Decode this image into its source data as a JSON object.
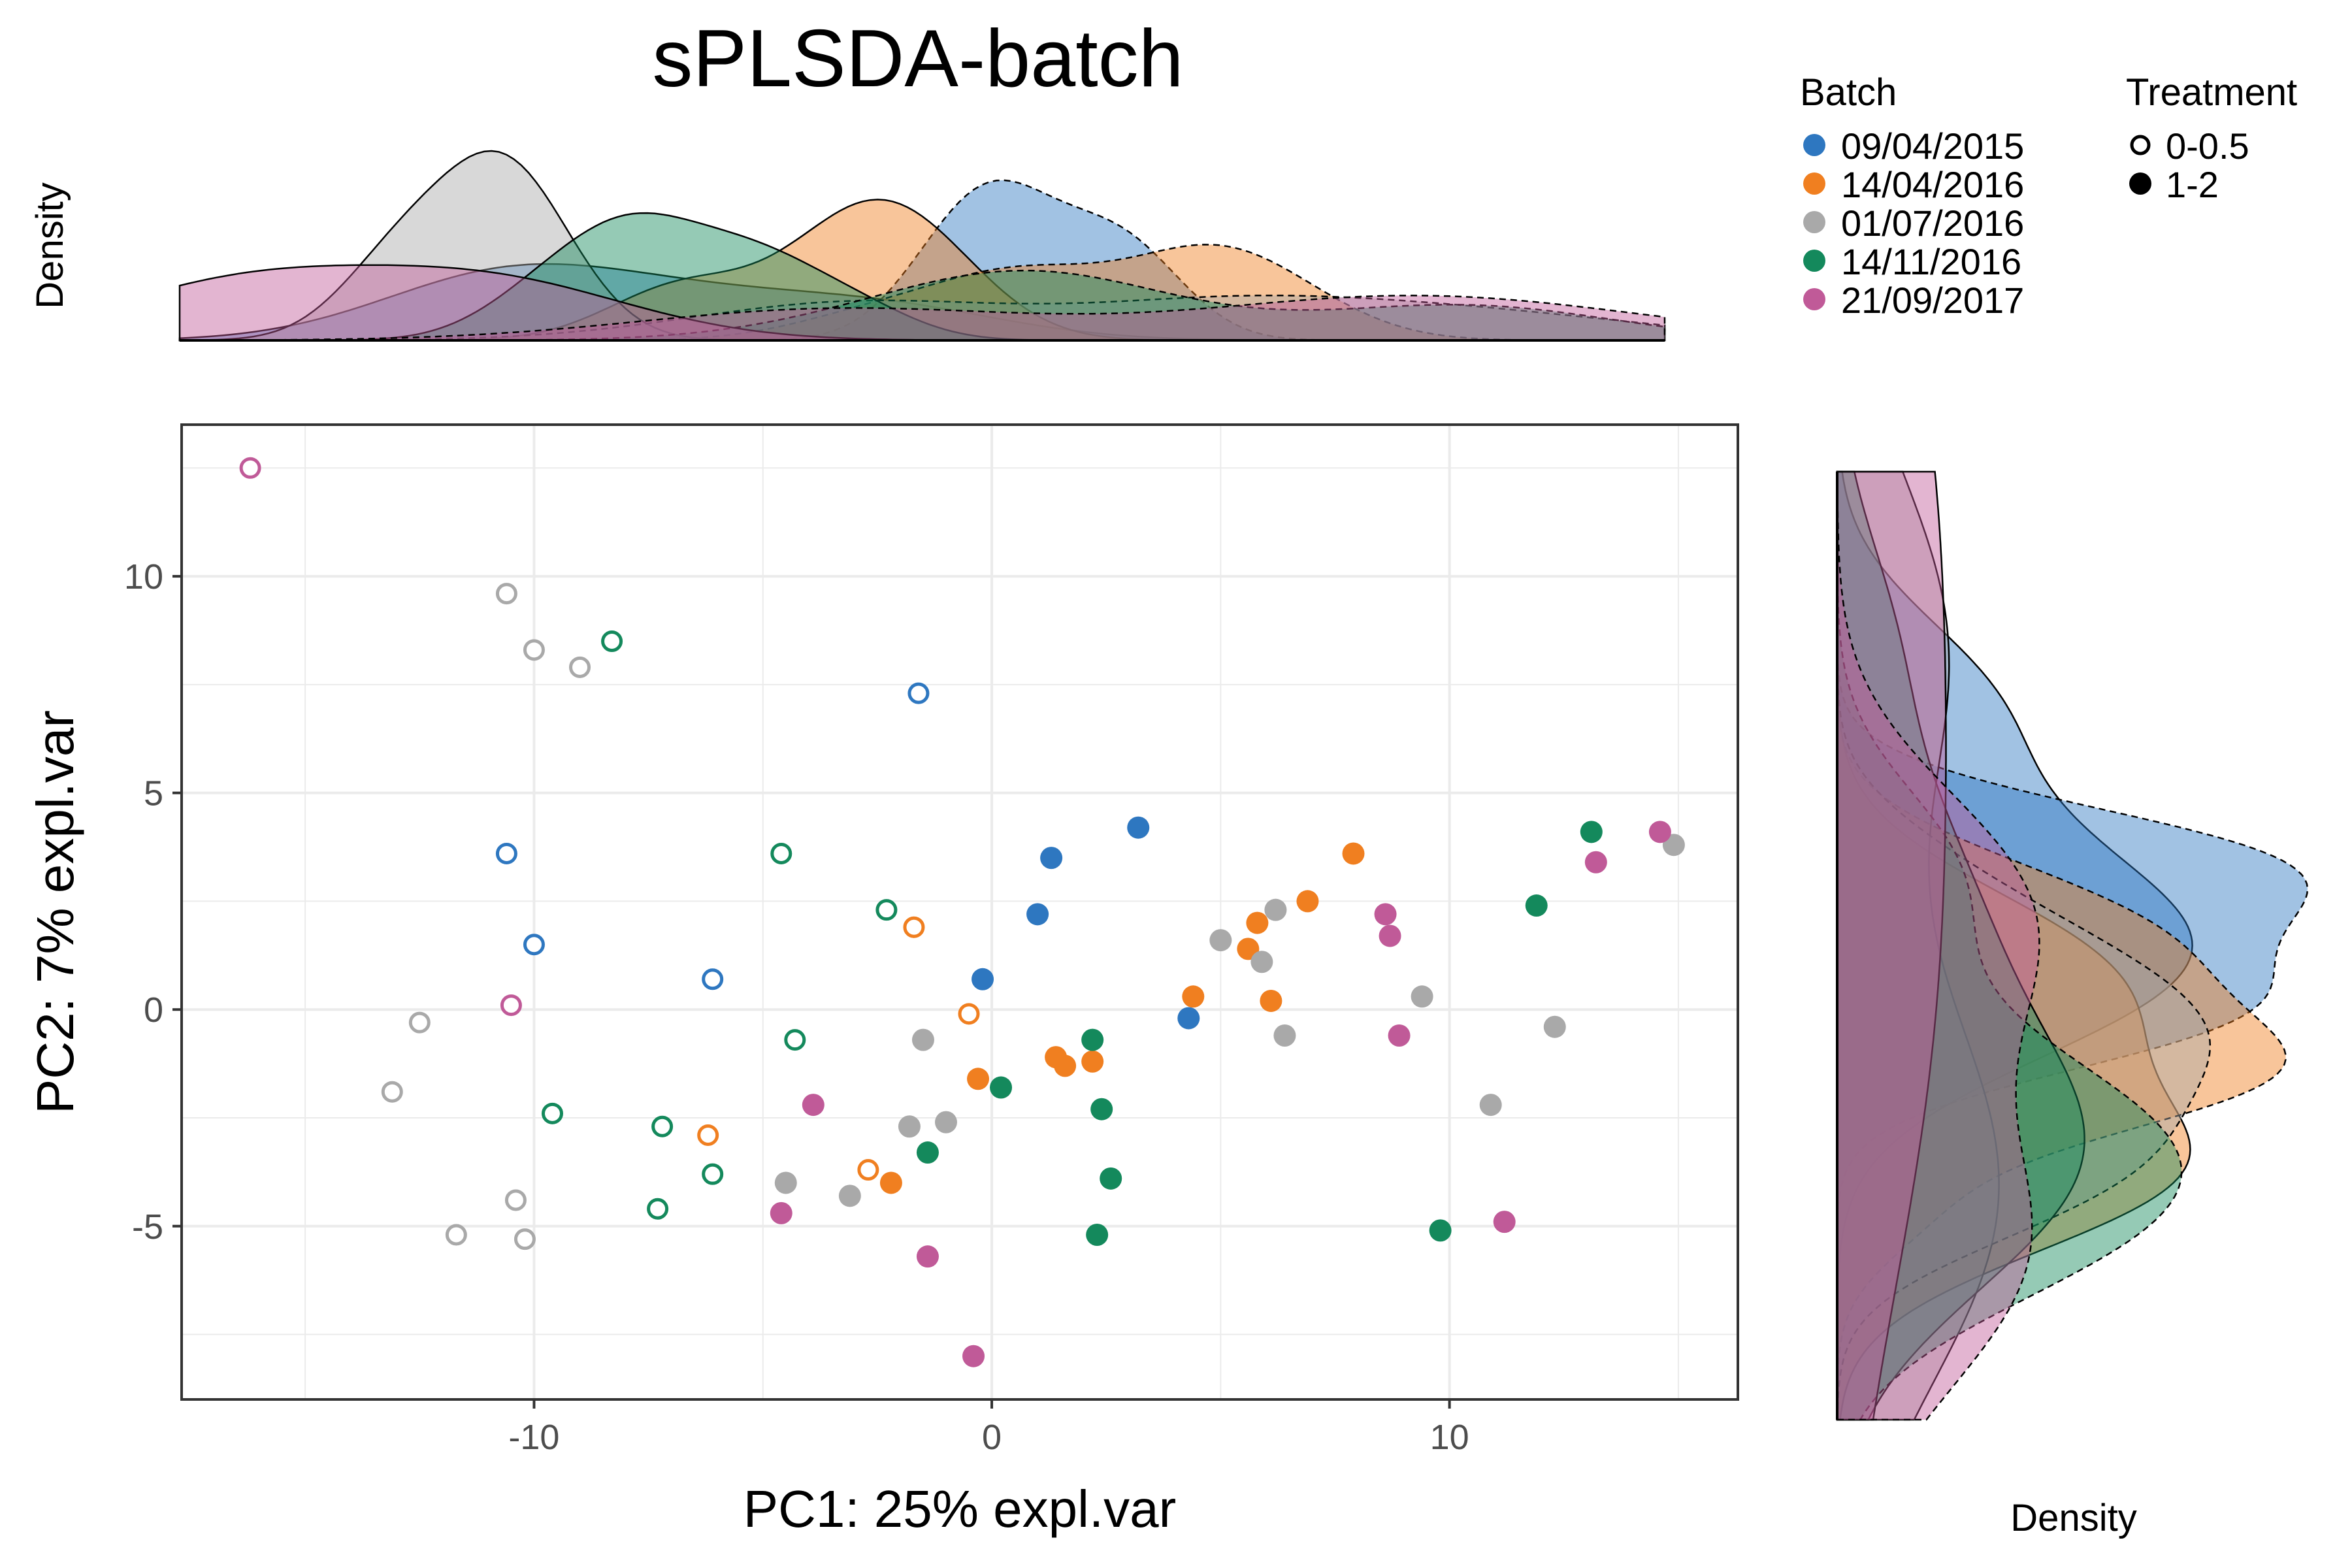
{
  "chart_data": {
    "type": "scatter",
    "title": "sPLSDA-batch",
    "xlabel": "PC1: 25% expl.var",
    "ylabel": "PC2: 7% expl.var",
    "top_density_label": "Density",
    "right_density_label": "Density",
    "xlim": [
      -17.7,
      16.3
    ],
    "ylim": [
      -9.0,
      13.5
    ],
    "x_ticks": [
      -10,
      0,
      10
    ],
    "x_tick_labels": [
      "-10",
      "0",
      "10"
    ],
    "y_ticks": [
      -5,
      0,
      5,
      10
    ],
    "y_tick_labels": [
      "-5",
      "0",
      "5",
      "10"
    ],
    "grid": true,
    "legend_position": "top-right",
    "legend": {
      "batch_title": "Batch",
      "treatment_title": "Treatment",
      "treatment_labels": [
        "0-0.5",
        "1-2"
      ]
    },
    "series": [
      {
        "name": "09/04/2015",
        "color": "#2E77C0",
        "points": [
          {
            "x": -1.6,
            "y": 7.3,
            "treatment": "0-0.5"
          },
          {
            "x": -10.6,
            "y": 3.6,
            "treatment": "0-0.5"
          },
          {
            "x": -10.0,
            "y": 1.5,
            "treatment": "0-0.5"
          },
          {
            "x": -6.1,
            "y": 0.7,
            "treatment": "0-0.5"
          },
          {
            "x": 3.2,
            "y": 4.2,
            "treatment": "1-2"
          },
          {
            "x": 1.3,
            "y": 3.5,
            "treatment": "1-2"
          },
          {
            "x": 1.0,
            "y": 2.2,
            "treatment": "1-2"
          },
          {
            "x": -0.2,
            "y": 0.7,
            "treatment": "1-2"
          },
          {
            "x": 4.3,
            "y": -0.2,
            "treatment": "1-2"
          }
        ]
      },
      {
        "name": "14/04/2016",
        "color": "#F07F20",
        "points": [
          {
            "x": -1.7,
            "y": 1.9,
            "treatment": "0-0.5"
          },
          {
            "x": -0.5,
            "y": -0.1,
            "treatment": "0-0.5"
          },
          {
            "x": -6.2,
            "y": -2.9,
            "treatment": "0-0.5"
          },
          {
            "x": -2.7,
            "y": -3.7,
            "treatment": "0-0.5"
          },
          {
            "x": 7.9,
            "y": 3.6,
            "treatment": "1-2"
          },
          {
            "x": 6.9,
            "y": 2.5,
            "treatment": "1-2"
          },
          {
            "x": 5.8,
            "y": 2.0,
            "treatment": "1-2"
          },
          {
            "x": 5.6,
            "y": 1.4,
            "treatment": "1-2"
          },
          {
            "x": 4.4,
            "y": 0.3,
            "treatment": "1-2"
          },
          {
            "x": 6.1,
            "y": 0.2,
            "treatment": "1-2"
          },
          {
            "x": -0.3,
            "y": -1.6,
            "treatment": "1-2"
          },
          {
            "x": 1.4,
            "y": -1.1,
            "treatment": "1-2"
          },
          {
            "x": 1.6,
            "y": -1.3,
            "treatment": "1-2"
          },
          {
            "x": 2.2,
            "y": -1.2,
            "treatment": "1-2"
          },
          {
            "x": -2.2,
            "y": -4.0,
            "treatment": "1-2"
          }
        ]
      },
      {
        "name": "01/07/2016",
        "color": "#A9A9A9",
        "points": [
          {
            "x": -10.6,
            "y": 9.6,
            "treatment": "0-0.5"
          },
          {
            "x": -10.0,
            "y": 8.3,
            "treatment": "0-0.5"
          },
          {
            "x": -9.0,
            "y": 7.9,
            "treatment": "0-0.5"
          },
          {
            "x": -12.5,
            "y": -0.3,
            "treatment": "0-0.5"
          },
          {
            "x": -13.1,
            "y": -1.9,
            "treatment": "0-0.5"
          },
          {
            "x": -10.4,
            "y": -4.4,
            "treatment": "0-0.5"
          },
          {
            "x": -11.7,
            "y": -5.2,
            "treatment": "0-0.5"
          },
          {
            "x": -10.2,
            "y": -5.3,
            "treatment": "0-0.5"
          },
          {
            "x": 14.9,
            "y": 3.8,
            "treatment": "1-2"
          },
          {
            "x": 6.2,
            "y": 2.3,
            "treatment": "1-2"
          },
          {
            "x": 5.0,
            "y": 1.6,
            "treatment": "1-2"
          },
          {
            "x": 5.9,
            "y": 1.1,
            "treatment": "1-2"
          },
          {
            "x": 9.4,
            "y": 0.3,
            "treatment": "1-2"
          },
          {
            "x": 6.4,
            "y": -0.6,
            "treatment": "1-2"
          },
          {
            "x": 12.3,
            "y": -0.4,
            "treatment": "1-2"
          },
          {
            "x": 10.9,
            "y": -2.2,
            "treatment": "1-2"
          },
          {
            "x": -1.5,
            "y": -0.7,
            "treatment": "1-2"
          },
          {
            "x": -1.8,
            "y": -2.7,
            "treatment": "1-2"
          },
          {
            "x": -1.0,
            "y": -2.6,
            "treatment": "1-2"
          },
          {
            "x": -4.5,
            "y": -4.0,
            "treatment": "1-2"
          },
          {
            "x": -3.1,
            "y": -4.3,
            "treatment": "1-2"
          }
        ]
      },
      {
        "name": "14/11/2016",
        "color": "#14895C",
        "points": [
          {
            "x": -8.3,
            "y": 8.5,
            "treatment": "0-0.5"
          },
          {
            "x": -4.6,
            "y": 3.6,
            "treatment": "0-0.5"
          },
          {
            "x": -2.3,
            "y": 2.3,
            "treatment": "0-0.5"
          },
          {
            "x": -4.3,
            "y": -0.7,
            "treatment": "0-0.5"
          },
          {
            "x": -9.6,
            "y": -2.4,
            "treatment": "0-0.5"
          },
          {
            "x": -7.2,
            "y": -2.7,
            "treatment": "0-0.5"
          },
          {
            "x": -6.1,
            "y": -3.8,
            "treatment": "0-0.5"
          },
          {
            "x": -7.3,
            "y": -4.6,
            "treatment": "0-0.5"
          },
          {
            "x": 13.1,
            "y": 4.1,
            "treatment": "1-2"
          },
          {
            "x": 11.9,
            "y": 2.4,
            "treatment": "1-2"
          },
          {
            "x": 2.2,
            "y": -0.7,
            "treatment": "1-2"
          },
          {
            "x": 0.2,
            "y": -1.8,
            "treatment": "1-2"
          },
          {
            "x": 2.4,
            "y": -2.3,
            "treatment": "1-2"
          },
          {
            "x": -1.4,
            "y": -3.3,
            "treatment": "1-2"
          },
          {
            "x": 2.6,
            "y": -3.9,
            "treatment": "1-2"
          },
          {
            "x": 2.3,
            "y": -5.2,
            "treatment": "1-2"
          },
          {
            "x": 9.8,
            "y": -5.1,
            "treatment": "1-2"
          }
        ]
      },
      {
        "name": "21/09/2017",
        "color": "#C05A98",
        "points": [
          {
            "x": -16.2,
            "y": 12.5,
            "treatment": "0-0.5"
          },
          {
            "x": -10.5,
            "y": 0.1,
            "treatment": "0-0.5"
          },
          {
            "x": 14.6,
            "y": 4.1,
            "treatment": "1-2"
          },
          {
            "x": 13.2,
            "y": 3.4,
            "treatment": "1-2"
          },
          {
            "x": 8.6,
            "y": 2.2,
            "treatment": "1-2"
          },
          {
            "x": 8.7,
            "y": 1.7,
            "treatment": "1-2"
          },
          {
            "x": 8.9,
            "y": -0.6,
            "treatment": "1-2"
          },
          {
            "x": -3.9,
            "y": -2.2,
            "treatment": "1-2"
          },
          {
            "x": -4.6,
            "y": -4.7,
            "treatment": "1-2"
          },
          {
            "x": -1.4,
            "y": -5.7,
            "treatment": "1-2"
          },
          {
            "x": 11.2,
            "y": -4.9,
            "treatment": "1-2"
          },
          {
            "x": -0.4,
            "y": -8.0,
            "treatment": "1-2"
          }
        ]
      }
    ]
  }
}
